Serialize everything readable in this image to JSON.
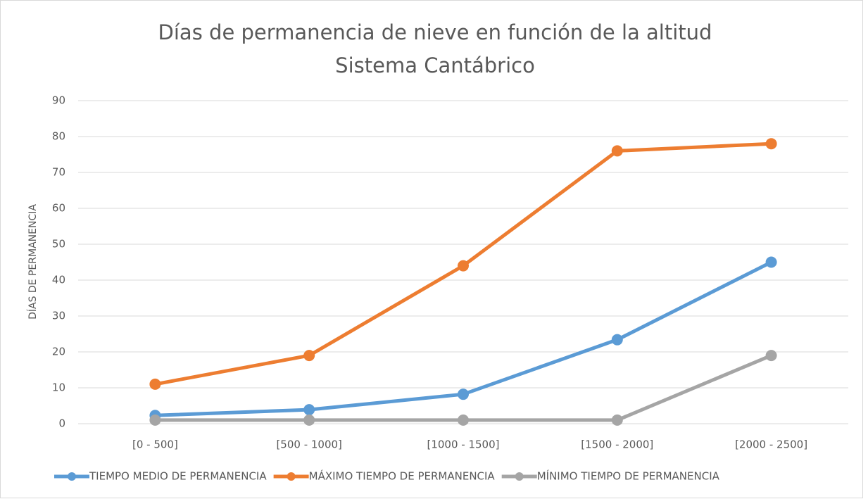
{
  "chart_data": {
    "type": "line",
    "title": [
      "Días de permanencia de nieve en función de la altitud",
      "Sistema Cantábrico"
    ],
    "y_label": "DÍAS DE PERMANENCIA",
    "categories": [
      "[0 - 500]",
      "[500 - 1000]",
      "[1000 - 1500]",
      "[1500 - 2000]",
      "[2000 - 2500]"
    ],
    "series": [
      {
        "name": "TIEMPO MEDIO DE PERMANENCIA",
        "color": "#5b9bd5",
        "values": [
          2.3,
          3.9,
          8.2,
          23.4,
          45
        ]
      },
      {
        "name": "MÁXIMO TIEMPO DE PERMANENCIA",
        "color": "#ed7d31",
        "values": [
          11,
          19,
          44,
          76,
          78
        ]
      },
      {
        "name": "MÍNIMO TIEMPO DE PERMANENCIA",
        "color": "#a5a5a5",
        "values": [
          1,
          1,
          1,
          1,
          19
        ]
      }
    ],
    "ylim": [
      0,
      90
    ],
    "yticks": [
      0,
      10,
      20,
      30,
      40,
      50,
      60,
      70,
      80,
      90
    ],
    "grid": true,
    "legend": "bottom"
  }
}
